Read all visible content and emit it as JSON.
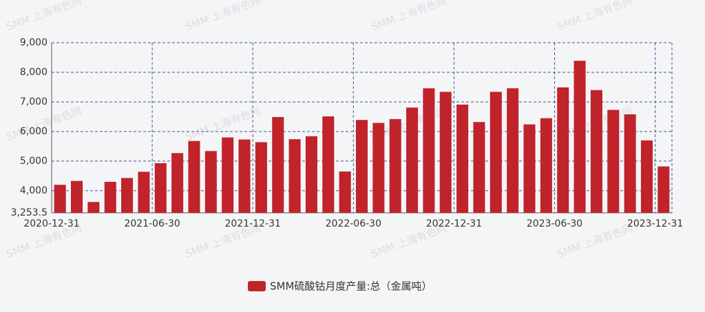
{
  "chart_data": {
    "type": "bar",
    "watermark": "SMM 上海有色网",
    "categories": [
      "2020-12-31",
      null,
      null,
      null,
      null,
      null,
      "2021-06-30",
      null,
      null,
      null,
      null,
      null,
      "2021-12-31",
      null,
      null,
      null,
      null,
      null,
      "2022-06-30",
      null,
      null,
      null,
      null,
      null,
      "2022-12-31",
      null,
      null,
      null,
      null,
      null,
      "2023-06-30",
      null,
      null,
      null,
      null,
      null,
      "2023-12-31"
    ],
    "series": [
      {
        "name": "SMM硫酸钴月度产量:总（金属吨）",
        "color": "#c1232b",
        "values": [
          4200,
          4330,
          3620,
          4300,
          4430,
          4640,
          4930,
          5270,
          5680,
          5340,
          5800,
          5730,
          5640,
          6490,
          5740,
          5840,
          6510,
          4650,
          6390,
          6290,
          6420,
          6810,
          7460,
          7340,
          6910,
          6320,
          7340,
          7460,
          6240,
          6450,
          7490,
          8390,
          7400,
          6730,
          6580,
          5700,
          4820
        ]
      }
    ],
    "ylim": [
      3253.5,
      9000
    ],
    "yticks": [
      {
        "value": 3253.5,
        "label": "3,253.5"
      },
      {
        "value": 4000,
        "label": "4,000"
      },
      {
        "value": 5000,
        "label": "5,000"
      },
      {
        "value": 6000,
        "label": "6,000"
      },
      {
        "value": 7000,
        "label": "7,000"
      },
      {
        "value": 8000,
        "label": "8,000"
      },
      {
        "value": 9000,
        "label": "9,000"
      }
    ],
    "grid": true
  }
}
